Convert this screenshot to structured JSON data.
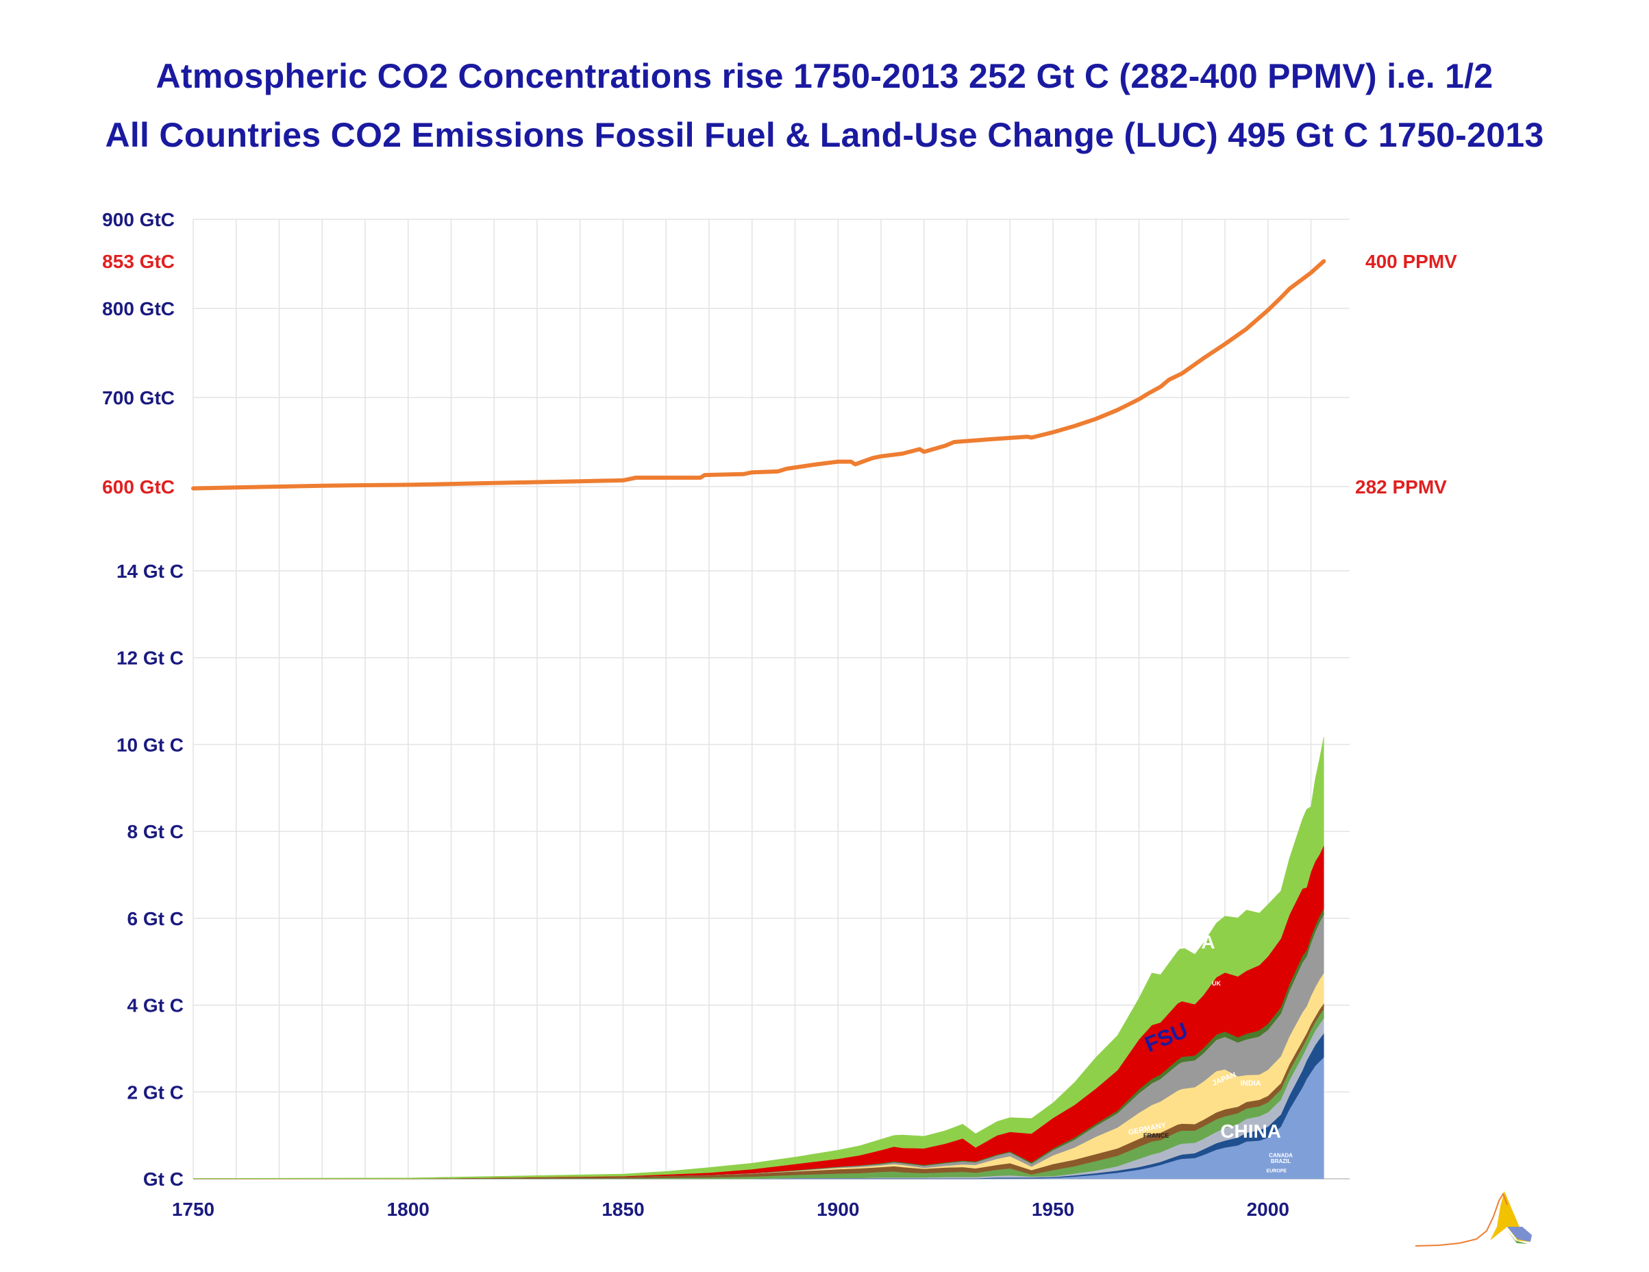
{
  "title_line1": "Atmospheric CO2 Concentrations rise 1750-2013 252 Gt C (282-400 PPMV) i.e. 1/2",
  "title_line2": "All Countries CO2 Emissions Fossil Fuel & Land-Use Change (LUC) 495 Gt C 1750-2013",
  "colors": {
    "title": "#1a1aa0",
    "axis_label": "#1a1a80",
    "highlight_label": "#e02020",
    "concentration_line": "#ee7d31",
    "grid": "#e3e3e3",
    "luc": "#8fd04a",
    "usa": "#dd0000",
    "fsu": "#ffe08a",
    "china": "#7f9fd8"
  },
  "chart_data": [
    {
      "type": "line",
      "series": [
        {
          "name": "Atmospheric CO2",
          "x": [
            1750,
            1760,
            1770,
            1780,
            1790,
            1800,
            1810,
            1820,
            1830,
            1840,
            1850,
            1853,
            1860,
            1868,
            1869,
            1878,
            1880,
            1886,
            1888,
            1895,
            1900,
            1903,
            1904,
            1908,
            1910,
            1915,
            1919,
            1920,
            1925,
            1927,
            1935,
            1944,
            1945,
            1950,
            1955,
            1960,
            1965,
            1970,
            1972,
            1975,
            1977,
            1980,
            1985,
            1990,
            1995,
            2000,
            2003,
            2005,
            2010,
            2013
          ],
          "values": [
            598,
            599,
            600,
            601,
            601.5,
            602,
            603,
            604,
            605,
            606,
            607,
            610,
            610,
            610,
            613,
            614,
            616,
            617,
            620,
            625,
            628,
            628,
            625,
            632,
            634,
            637,
            642,
            639,
            646,
            650,
            653,
            656,
            655,
            661,
            668,
            676,
            686,
            698,
            704,
            712,
            720,
            727,
            744,
            760,
            777,
            798,
            812,
            822,
            840,
            853
          ],
          "color": "#ee7d31"
        }
      ],
      "ytick_labels": [
        "900 GtC",
        "853 GtC",
        "800 GtC",
        "700 GtC",
        "600 GtC"
      ],
      "ytick_values": [
        900,
        853,
        800,
        700,
        600
      ],
      "right_labels": [
        "400 PPMV",
        "282 PPMV"
      ],
      "right_label_values": [
        853,
        600
      ],
      "ylim": [
        600,
        900
      ],
      "grid": true
    },
    {
      "type": "area",
      "stacked": true,
      "x": [
        1750,
        1800,
        1850,
        1860,
        1870,
        1880,
        1890,
        1900,
        1905,
        1910,
        1913,
        1915,
        1920,
        1925,
        1929,
        1932,
        1937,
        1940,
        1945,
        1950,
        1955,
        1960,
        1965,
        1970,
        1973,
        1975,
        1979,
        1980,
        1983,
        1985,
        1988,
        1990,
        1993,
        1995,
        1998,
        2000,
        2003,
        2005,
        2008,
        2009,
        2010,
        2011,
        2012,
        2013
      ],
      "series": [
        {
          "name": "CHINA",
          "color": "#7f9fd8",
          "values": [
            0,
            0,
            0,
            0,
            0,
            0,
            0,
            0,
            0,
            0,
            0,
            0,
            0,
            0,
            0,
            0,
            0.01,
            0.01,
            0.01,
            0.02,
            0.05,
            0.09,
            0.14,
            0.21,
            0.27,
            0.32,
            0.44,
            0.46,
            0.48,
            0.55,
            0.67,
            0.72,
            0.77,
            0.86,
            0.88,
            0.95,
            1.2,
            1.6,
            2.1,
            2.3,
            2.45,
            2.6,
            2.7,
            2.8
          ]
        },
        {
          "name": "INDIA",
          "color": "#1f4f8f",
          "values": [
            0,
            0,
            0,
            0,
            0,
            0,
            0.01,
            0.01,
            0.01,
            0.01,
            0.01,
            0.01,
            0.01,
            0.01,
            0.01,
            0.01,
            0.02,
            0.02,
            0.02,
            0.02,
            0.03,
            0.04,
            0.05,
            0.06,
            0.07,
            0.07,
            0.09,
            0.1,
            0.11,
            0.13,
            0.15,
            0.16,
            0.18,
            0.2,
            0.24,
            0.25,
            0.28,
            0.32,
            0.39,
            0.42,
            0.45,
            0.48,
            0.52,
            0.55
          ]
        },
        {
          "name": "JAPAN",
          "color": "#b0b8c8",
          "values": [
            0,
            0,
            0,
            0,
            0,
            0,
            0.01,
            0.01,
            0.01,
            0.02,
            0.02,
            0.02,
            0.02,
            0.03,
            0.03,
            0.03,
            0.04,
            0.05,
            0.02,
            0.02,
            0.04,
            0.06,
            0.1,
            0.19,
            0.22,
            0.22,
            0.25,
            0.25,
            0.24,
            0.24,
            0.26,
            0.29,
            0.31,
            0.32,
            0.32,
            0.33,
            0.34,
            0.35,
            0.33,
            0.3,
            0.32,
            0.33,
            0.34,
            0.35
          ]
        },
        {
          "name": "GERMANY",
          "color": "#6aa84f",
          "values": [
            0,
            0,
            0.01,
            0.02,
            0.03,
            0.05,
            0.07,
            0.1,
            0.11,
            0.13,
            0.14,
            0.12,
            0.1,
            0.11,
            0.12,
            0.1,
            0.14,
            0.16,
            0.05,
            0.14,
            0.17,
            0.22,
            0.24,
            0.28,
            0.3,
            0.28,
            0.3,
            0.3,
            0.28,
            0.29,
            0.29,
            0.27,
            0.25,
            0.24,
            0.23,
            0.23,
            0.23,
            0.22,
            0.21,
            0.2,
            0.21,
            0.2,
            0.21,
            0.21
          ]
        },
        {
          "name": "UK",
          "color": "#8b5a2b",
          "values": [
            0,
            0,
            0.04,
            0.05,
            0.06,
            0.07,
            0.08,
            0.1,
            0.11,
            0.11,
            0.12,
            0.12,
            0.1,
            0.11,
            0.11,
            0.1,
            0.11,
            0.12,
            0.1,
            0.14,
            0.15,
            0.16,
            0.17,
            0.18,
            0.18,
            0.17,
            0.17,
            0.16,
            0.15,
            0.15,
            0.16,
            0.16,
            0.15,
            0.15,
            0.15,
            0.15,
            0.15,
            0.15,
            0.14,
            0.13,
            0.13,
            0.12,
            0.13,
            0.13
          ]
        },
        {
          "name": "FSU",
          "color": "#ffe08a",
          "values": [
            0,
            0,
            0,
            0,
            0,
            0,
            0.01,
            0.03,
            0.03,
            0.04,
            0.05,
            0.05,
            0.02,
            0.04,
            0.06,
            0.08,
            0.14,
            0.16,
            0.08,
            0.2,
            0.28,
            0.4,
            0.48,
            0.6,
            0.66,
            0.72,
            0.78,
            0.8,
            0.85,
            0.88,
            0.95,
            0.92,
            0.7,
            0.62,
            0.58,
            0.6,
            0.62,
            0.64,
            0.66,
            0.62,
            0.65,
            0.68,
            0.69,
            0.7
          ]
        },
        {
          "name": "OTHER",
          "color": "#9a9a9a",
          "values": [
            0,
            0,
            0,
            0,
            0,
            0.01,
            0.01,
            0.02,
            0.03,
            0.03,
            0.04,
            0.04,
            0.05,
            0.06,
            0.07,
            0.06,
            0.08,
            0.09,
            0.07,
            0.12,
            0.18,
            0.25,
            0.33,
            0.45,
            0.5,
            0.52,
            0.6,
            0.62,
            0.62,
            0.65,
            0.72,
            0.75,
            0.78,
            0.82,
            0.88,
            0.92,
            0.98,
            1.05,
            1.15,
            1.15,
            1.22,
            1.28,
            1.32,
            1.35
          ]
        },
        {
          "name": "CANADA",
          "color": "#4a7a2a",
          "values": [
            0,
            0,
            0,
            0,
            0,
            0,
            0.01,
            0.01,
            0.01,
            0.02,
            0.02,
            0.02,
            0.02,
            0.02,
            0.02,
            0.02,
            0.02,
            0.02,
            0.03,
            0.04,
            0.05,
            0.05,
            0.06,
            0.09,
            0.1,
            0.1,
            0.11,
            0.12,
            0.11,
            0.12,
            0.12,
            0.12,
            0.12,
            0.13,
            0.14,
            0.14,
            0.15,
            0.15,
            0.15,
            0.14,
            0.14,
            0.14,
            0.14,
            0.14
          ]
        },
        {
          "name": "USA",
          "color": "#dd0000",
          "values": [
            0,
            0,
            0.01,
            0.03,
            0.05,
            0.09,
            0.14,
            0.18,
            0.23,
            0.3,
            0.34,
            0.33,
            0.38,
            0.43,
            0.51,
            0.32,
            0.44,
            0.45,
            0.66,
            0.7,
            0.75,
            0.81,
            0.93,
            1.15,
            1.24,
            1.2,
            1.3,
            1.28,
            1.18,
            1.22,
            1.32,
            1.36,
            1.4,
            1.45,
            1.5,
            1.55,
            1.58,
            1.6,
            1.55,
            1.45,
            1.5,
            1.48,
            1.42,
            1.45
          ]
        },
        {
          "name": "LUC",
          "color": "#8fd04a",
          "values": [
            0.01,
            0.02,
            0.05,
            0.07,
            0.12,
            0.14,
            0.16,
            0.2,
            0.22,
            0.25,
            0.26,
            0.3,
            0.28,
            0.3,
            0.33,
            0.32,
            0.32,
            0.33,
            0.35,
            0.35,
            0.52,
            0.72,
            0.8,
            0.95,
            1.2,
            1.1,
            1.2,
            1.25,
            1.15,
            1.2,
            1.25,
            1.3,
            1.35,
            1.4,
            1.2,
            1.2,
            1.1,
            1.3,
            1.6,
            1.8,
            1.5,
            1.9,
            2.2,
            2.5
          ]
        }
      ],
      "labels": [
        "LUC",
        "USA",
        "FSU",
        "JAPAN",
        "INDIA",
        "GERMANY",
        "CHINA",
        "UK",
        "FRANCE",
        "CANADA",
        "BRAZIL",
        "EUROPE"
      ],
      "ytick_labels": [
        "14 Gt C",
        "12 Gt C",
        "10 Gt C",
        "8 Gt C",
        "6 Gt C",
        "4 Gt C",
        "2 Gt C",
        "Gt C"
      ],
      "ytick_values": [
        14,
        12,
        10,
        8,
        6,
        4,
        2,
        0
      ],
      "ylim": [
        0,
        14
      ],
      "grid": true
    }
  ],
  "x_axis": {
    "tick_labels": [
      "1750",
      "1800",
      "1850",
      "1900",
      "1950",
      "2000"
    ],
    "tick_values": [
      1750,
      1800,
      1850,
      1900,
      1950,
      2000
    ],
    "xlim": [
      1750,
      2019
    ]
  },
  "logo_icon": "volcano-curve-logo-icon"
}
